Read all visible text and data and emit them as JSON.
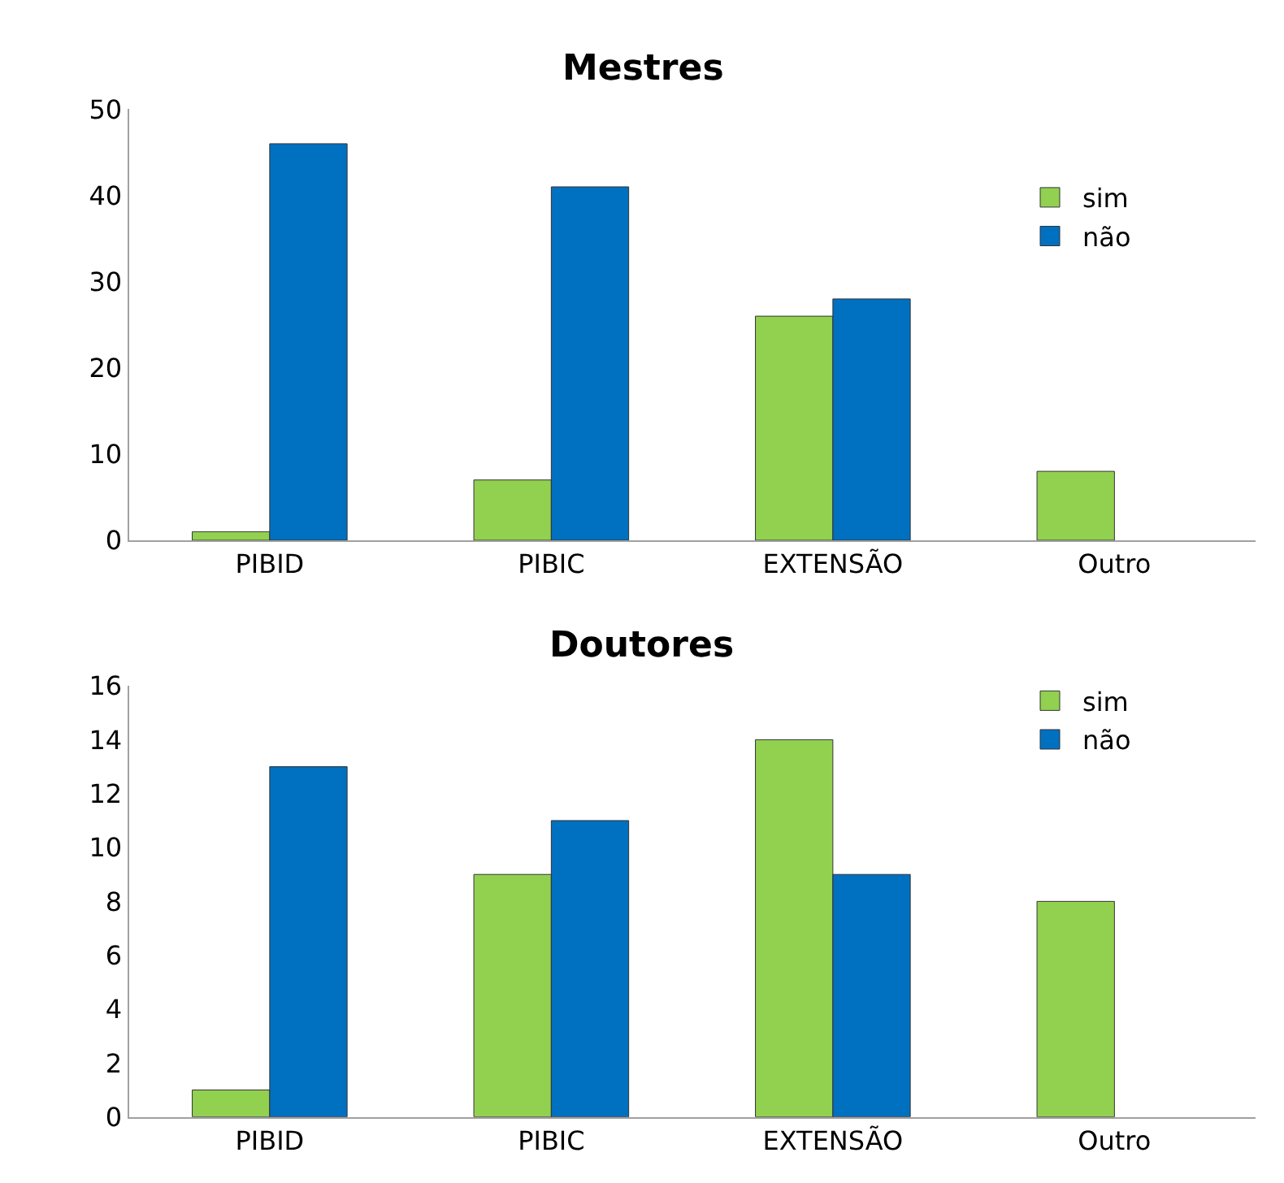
{
  "chart_data": [
    {
      "type": "bar",
      "title": "Mestres",
      "categories": [
        "PIBID",
        "PIBIC",
        "EXTENSÃO",
        "Outro"
      ],
      "series": [
        {
          "name": "sim",
          "color": "#92d050",
          "values": [
            1,
            7,
            26,
            8
          ]
        },
        {
          "name": "não",
          "color": "#0070c0",
          "values": [
            46,
            41,
            28,
            null
          ]
        }
      ],
      "ylim": [
        0,
        50
      ],
      "yticks": [
        0,
        10,
        20,
        30,
        40,
        50
      ],
      "grid": false,
      "legend": "right"
    },
    {
      "type": "bar",
      "title": "Doutores",
      "categories": [
        "PIBID",
        "PIBIC",
        "EXTENSÃO",
        "Outro"
      ],
      "series": [
        {
          "name": "sim",
          "color": "#92d050",
          "values": [
            1,
            9,
            14,
            8
          ]
        },
        {
          "name": "não",
          "color": "#0070c0",
          "values": [
            13,
            11,
            9,
            null
          ]
        }
      ],
      "ylim": [
        0,
        16
      ],
      "yticks": [
        0,
        2,
        4,
        6,
        8,
        10,
        12,
        14,
        16
      ],
      "grid": false,
      "legend": "top right"
    }
  ]
}
